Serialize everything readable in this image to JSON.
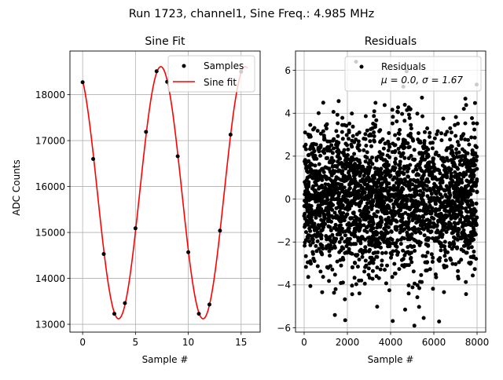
{
  "suptitle": "Run 1723, channel1, Sine Freq.: 4.985 MHz",
  "chart_data": [
    {
      "type": "line",
      "title": "Sine Fit",
      "xlabel": "Sample #",
      "ylabel": "ADC Counts",
      "xlim": [
        -1.2,
        16.8
      ],
      "ylim": [
        12830,
        18950
      ],
      "grid": true,
      "xticks": [
        "0",
        "5",
        "10",
        "15"
      ],
      "xtick_values": [
        0,
        5,
        10,
        15
      ],
      "yticks": [
        "13000",
        "14000",
        "15000",
        "16000",
        "17000",
        "18000"
      ],
      "ytick_values": [
        13000,
        14000,
        15000,
        16000,
        17000,
        18000
      ],
      "legend": {
        "placement": "top-right",
        "entries": [
          "Samples",
          "Sine fit"
        ]
      },
      "series": [
        {
          "name": "Samples",
          "style": "points",
          "color": "#000000",
          "x": [
            0,
            1,
            2,
            3,
            4,
            5,
            6,
            7,
            8,
            9,
            10,
            11,
            12,
            13,
            14,
            15
          ],
          "y": [
            18270,
            16600,
            14530,
            13230,
            13460,
            15090,
            17190,
            18510,
            18280,
            16660,
            14570,
            13230,
            13430,
            15040,
            17130,
            18500
          ]
        },
        {
          "name": "Sine fit",
          "style": "line",
          "color": "#ff0000",
          "model": {
            "offset": 15865,
            "amplitude": 2745,
            "period": 8.0,
            "peak_at": 7.4,
            "x_range": [
              0,
              15.6
            ]
          }
        }
      ]
    },
    {
      "type": "scatter",
      "title": "Residuals",
      "xlabel": "Sample #",
      "ylabel": "",
      "xlim": [
        -400,
        8400
      ],
      "ylim": [
        -6.2,
        6.9
      ],
      "grid": true,
      "xticks": [
        "0",
        "2000",
        "4000",
        "6000",
        "8000"
      ],
      "xtick_values": [
        0,
        2000,
        4000,
        6000,
        8000
      ],
      "yticks": [
        "−6",
        "−4",
        "−2",
        "0",
        "2",
        "4",
        "6"
      ],
      "ytick_values": [
        -6,
        -4,
        -2,
        0,
        2,
        4,
        6
      ],
      "legend": {
        "placement": "top-right",
        "entries": [
          "Residuals",
          "μ = 0.0, σ = 1.67"
        ]
      },
      "series": [
        {
          "name": "Residuals",
          "color": "#000000",
          "distribution": {
            "mean": 0.0,
            "sigma": 1.67,
            "count": 8000,
            "x_range": [
              0,
              8000
            ],
            "extremes": {
              "max": 6.4,
              "min": -5.9
            }
          }
        }
      ]
    }
  ]
}
